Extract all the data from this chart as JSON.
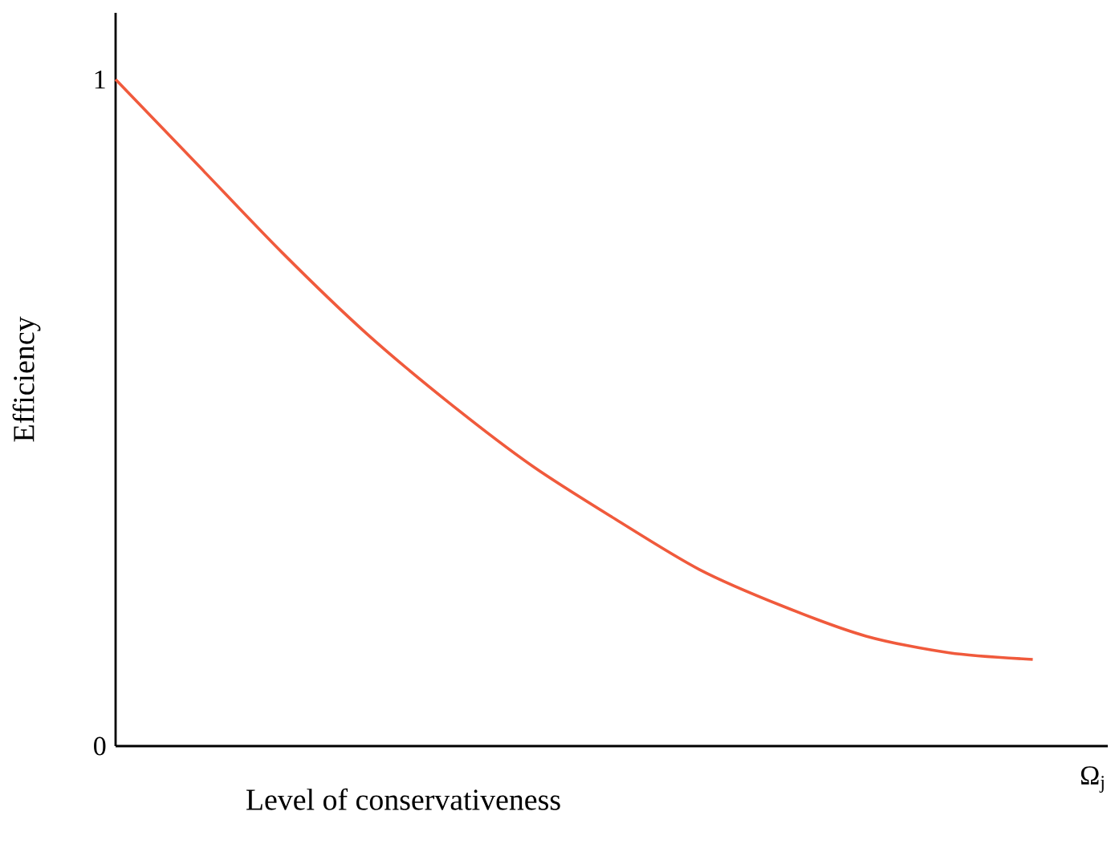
{
  "chart_data": {
    "type": "line",
    "xlabel": "Level of conservativeness",
    "ylabel": "Efficiency",
    "annotations": [
      "Ω$_{j}$"
    ],
    "categories": [
      null,
      null,
      null,
      null,
      null,
      null,
      null,
      null,
      null,
      null,
      null,
      null
    ],
    "values": [
      1.0,
      0.87,
      0.74,
      0.62,
      0.515,
      0.42,
      0.34,
      0.265,
      0.21,
      0.165,
      0.14,
      0.13
    ],
    "color": "#f05a3c",
    "marker": "none",
    "line_style": "solid",
    "ylim": [
      0,
      1.1
    ],
    "yticks": [
      0,
      1
    ]
  }
}
